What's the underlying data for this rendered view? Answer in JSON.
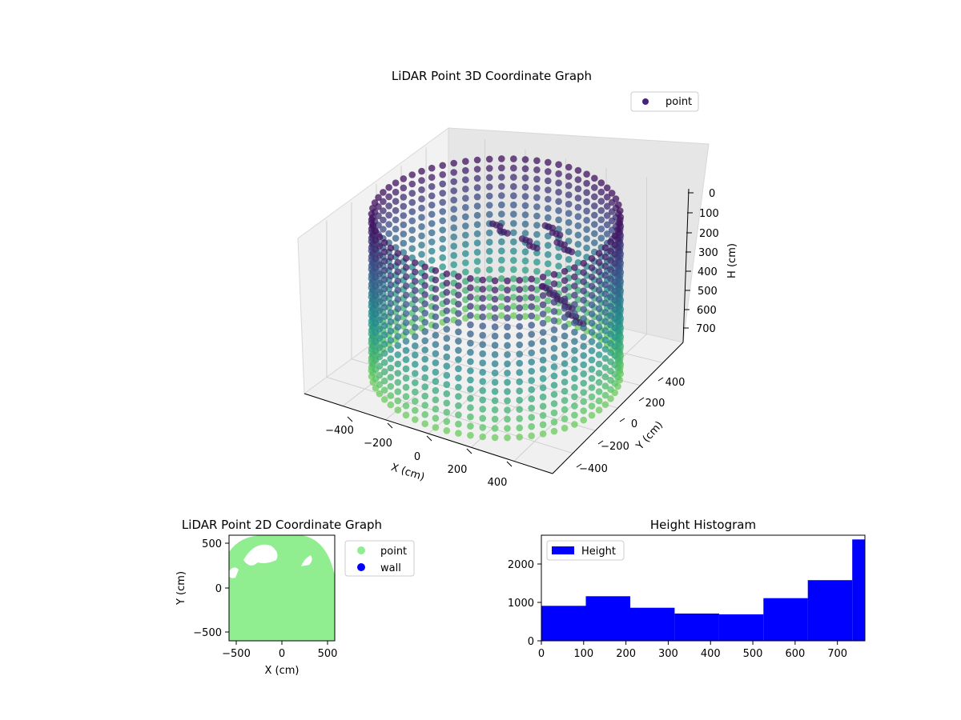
{
  "chart_data": [
    {
      "type": "scatter",
      "projection": "3d",
      "title": "LiDAR Point 3D Coordinate Graph",
      "xlabel": "X (cm)",
      "ylabel": "Y (cm)",
      "zlabel": "H (cm)",
      "xticks": [
        "−400",
        "−200",
        "0",
        "200",
        "400"
      ],
      "yticks": [
        "400",
        "200",
        "0",
        "−200",
        "−400"
      ],
      "zticks": [
        "0",
        "100",
        "200",
        "300",
        "400",
        "500",
        "600",
        "700"
      ],
      "xlim": [
        -580,
        580
      ],
      "ylim": [
        -580,
        580
      ],
      "zlim": [
        0,
        760
      ],
      "z_inverted": true,
      "legend": {
        "location": "upper right",
        "entries": [
          "point"
        ]
      },
      "series": [
        {
          "name": "point",
          "colormap": "viridis",
          "legend_color": "#46237a",
          "wall_radius": 520,
          "wall_height_range": [
            0,
            760
          ],
          "interior_clusters": [
            {
              "x": [
                -60,
                60,
                160,
                240
              ],
              "y": [
                140,
                180,
                200,
                160
              ],
              "h": [
                120,
                180,
                100,
                140
              ]
            },
            {
              "x": [
                280,
                320,
                340
              ],
              "y": [
                -40,
                20,
                80
              ],
              "h": [
                240,
                320,
                420
              ]
            }
          ]
        }
      ]
    },
    {
      "type": "scatter",
      "title": "LiDAR Point 2D Coordinate Graph",
      "xlabel": "X (cm)",
      "ylabel": "Y (cm)",
      "xticks": [
        "−500",
        "0",
        "500"
      ],
      "yticks": [
        "500",
        "0",
        "−500"
      ],
      "xlim": [
        -580,
        580
      ],
      "ylim": [
        -580,
        580
      ],
      "legend": {
        "location": "outside right",
        "entries": [
          "point",
          "wall"
        ]
      },
      "series": [
        {
          "name": "point",
          "color": "#90ee90"
        },
        {
          "name": "wall",
          "color": "#0000ff"
        }
      ]
    },
    {
      "type": "bar",
      "title": "Height Histogram",
      "xticks": [
        "0",
        "100",
        "200",
        "300",
        "400",
        "500",
        "600",
        "700"
      ],
      "yticks": [
        "0",
        "1000",
        "2000"
      ],
      "xlim": [
        0,
        765
      ],
      "ylim": [
        0,
        2750
      ],
      "legend": {
        "location": "upper left",
        "entries": [
          "Height"
        ]
      },
      "series": [
        {
          "name": "Height",
          "color": "#0000ff",
          "bin_edges": [
            0,
            105,
            210,
            315,
            420,
            525,
            630,
            735,
            765
          ],
          "values": [
            910,
            1160,
            860,
            710,
            690,
            1110,
            1580,
            2640
          ]
        }
      ]
    }
  ]
}
